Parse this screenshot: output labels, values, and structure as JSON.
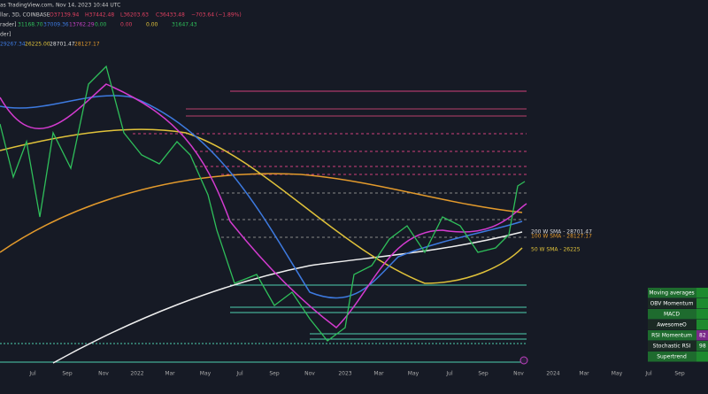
{
  "header": {
    "source": "as TradingView.com, Nov 14, 2023 10:44 UTC",
    "symbol": "llar, 3D, COINBASE",
    "ohlc": [
      "O37139.94",
      "H37442.48",
      "L36203.63",
      "C36433.48",
      "−703.64 (−1.89%)"
    ],
    "indicator1": {
      "name": "rader]",
      "values": [
        "31168.70",
        "37009.36",
        "13762.29",
        "0.00",
        "0.00",
        "0.00",
        "31647.43"
      ]
    },
    "indicator2": {
      "name": "der]"
    },
    "indicator3": {
      "values": [
        "29267.34",
        "26225.00",
        "28701.47",
        "28127.17"
      ]
    }
  },
  "x_axis": [
    "Jul",
    "Sep",
    "Nov",
    "2022",
    "Mar",
    "May",
    "Jul",
    "Sep",
    "Nov",
    "2023",
    "Mar",
    "May",
    "Jul",
    "Sep",
    "Nov",
    "2024",
    "Mar",
    "May",
    "Jul",
    "Sep"
  ],
  "sma_labels": [
    "200 W  SMA - 28701.47",
    "100 W  SMA - 28127.17",
    "50 W  SMA - 26225"
  ],
  "table": {
    "rows": [
      {
        "label": "Moving averages"
      },
      {
        "label": "OBV Momentum"
      },
      {
        "label": "MACD"
      },
      {
        "label": "AwesomeO"
      },
      {
        "label": "RSI Momentum",
        "value": "82"
      },
      {
        "label": "Stochastic RSI",
        "value": "98"
      },
      {
        "label": "Supertrend"
      }
    ]
  }
}
